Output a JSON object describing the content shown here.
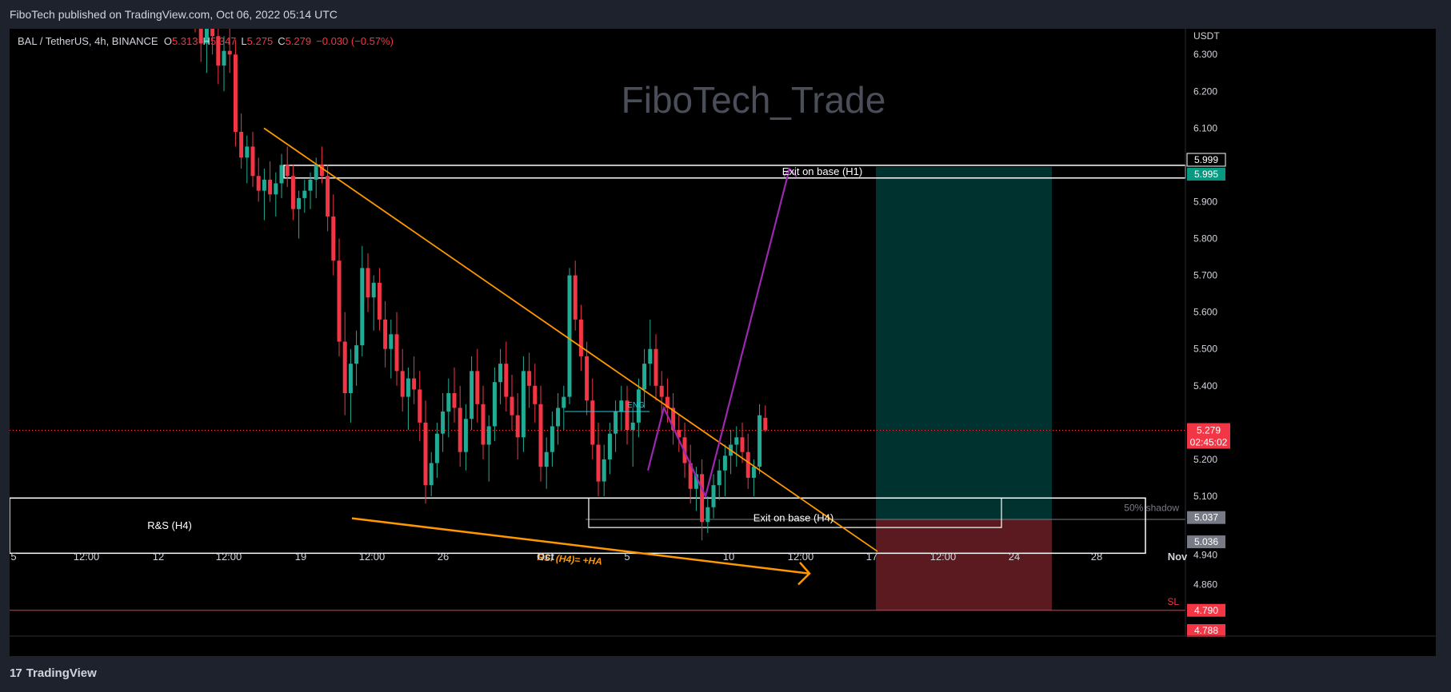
{
  "header": {
    "published": "FiboTech published on TradingView.com, Oct 06, 2022 05:14 UTC"
  },
  "legend": {
    "symbol": "BAL / TetherUS, 4h, BINANCE",
    "o_label": "O",
    "o": "5.313",
    "h_label": "H",
    "h": "5.347",
    "l_label": "L",
    "l": "5.275",
    "c_label": "C",
    "c": "5.279",
    "change": "−0.030 (−0.57%)"
  },
  "footer": {
    "brand": "TradingView",
    "logo_mark": "17"
  },
  "colors": {
    "up": "#22ab94",
    "down": "#f23645",
    "trendline": "#ff9800",
    "projection": "#9c27b0",
    "target_zone": "#003330",
    "stop_zone": "#5a1a1f"
  },
  "chart_data": {
    "type": "candlestick",
    "watermark": "FiboTech_Trade",
    "price_axis": {
      "currency": "USDT",
      "ticks": [
        "6.300",
        "6.200",
        "6.100",
        "5.900",
        "5.800",
        "5.700",
        "5.600",
        "5.500",
        "5.400",
        "5.200",
        "5.100",
        "4.940",
        "4.860"
      ],
      "ylim": [
        4.72,
        6.37
      ]
    },
    "time_axis": {
      "ticks": [
        "5",
        "12:00",
        "12",
        "12:00",
        "19",
        "12:00",
        "26",
        "Oct",
        "5",
        "10",
        "12:00",
        "17",
        "12:00",
        "24",
        "28",
        "Nov"
      ]
    },
    "badges": [
      {
        "text": "5.999",
        "style": "outline"
      },
      {
        "text": "5.995",
        "style": "teal"
      },
      {
        "text": "5.279",
        "sub": "02:45:02",
        "style": "red"
      },
      {
        "text": "5.037",
        "style": "grey"
      },
      {
        "text": "5.036",
        "style": "grey"
      },
      {
        "text": "4.790",
        "style": "red"
      },
      {
        "text": "4.788",
        "style": "red"
      }
    ],
    "annotations": {
      "exit_h1": "Exit on base (H1)",
      "exit_h4": "Exit on base (H4)",
      "rs_h4": "R&S (H4)",
      "rsi": "RSI (H4)= +HA",
      "eng": "ENG",
      "shadow": "50% shadow",
      "sl": "SL"
    },
    "levels": {
      "exit_h1_top": 5.999,
      "exit_h1_bottom": 5.995,
      "last_price": 5.279,
      "sl": 4.79,
      "rs_top": 5.095,
      "rs_bottom": 4.945,
      "target": 5.995,
      "entry": 5.037
    },
    "candles": [
      [
        6.48,
        6.52,
        6.36,
        6.41
      ],
      [
        6.41,
        6.46,
        6.28,
        6.33
      ],
      [
        6.33,
        6.4,
        6.25,
        6.37
      ],
      [
        6.37,
        6.43,
        6.3,
        6.35
      ],
      [
        6.35,
        6.39,
        6.22,
        6.27
      ],
      [
        6.27,
        6.35,
        6.2,
        6.31
      ],
      [
        6.31,
        6.38,
        6.25,
        6.3
      ],
      [
        6.3,
        6.34,
        6.05,
        6.09
      ],
      [
        6.09,
        6.14,
        5.99,
        6.02
      ],
      [
        6.02,
        6.08,
        5.95,
        6.05
      ],
      [
        6.05,
        6.09,
        5.94,
        5.97
      ],
      [
        5.97,
        6.02,
        5.9,
        5.93
      ],
      [
        5.93,
        5.99,
        5.85,
        5.96
      ],
      [
        5.96,
        6.01,
        5.9,
        5.92
      ],
      [
        5.92,
        5.98,
        5.86,
        5.95
      ],
      [
        5.95,
        6.03,
        5.91,
        6.0
      ],
      [
        6.0,
        6.05,
        5.94,
        5.97
      ],
      [
        5.97,
        6.0,
        5.85,
        5.88
      ],
      [
        5.88,
        5.93,
        5.8,
        5.91
      ],
      [
        5.91,
        5.96,
        5.87,
        5.93
      ],
      [
        5.93,
        5.98,
        5.88,
        5.96
      ],
      [
        5.96,
        6.02,
        5.91,
        6.0
      ],
      [
        6.0,
        6.05,
        5.95,
        5.97
      ],
      [
        5.97,
        6.0,
        5.82,
        5.86
      ],
      [
        5.86,
        5.92,
        5.7,
        5.74
      ],
      [
        5.74,
        5.8,
        5.48,
        5.52
      ],
      [
        5.52,
        5.6,
        5.32,
        5.38
      ],
      [
        5.38,
        5.5,
        5.3,
        5.46
      ],
      [
        5.46,
        5.55,
        5.4,
        5.51
      ],
      [
        5.51,
        5.78,
        5.48,
        5.72
      ],
      [
        5.72,
        5.76,
        5.6,
        5.64
      ],
      [
        5.64,
        5.7,
        5.55,
        5.68
      ],
      [
        5.68,
        5.72,
        5.55,
        5.58
      ],
      [
        5.58,
        5.63,
        5.45,
        5.5
      ],
      [
        5.5,
        5.58,
        5.42,
        5.54
      ],
      [
        5.54,
        5.6,
        5.4,
        5.44
      ],
      [
        5.44,
        5.5,
        5.33,
        5.37
      ],
      [
        5.37,
        5.45,
        5.28,
        5.42
      ],
      [
        5.42,
        5.48,
        5.35,
        5.39
      ],
      [
        5.39,
        5.44,
        5.25,
        5.3
      ],
      [
        5.3,
        5.36,
        5.08,
        5.13
      ],
      [
        5.13,
        5.22,
        5.1,
        5.19
      ],
      [
        5.19,
        5.3,
        5.15,
        5.27
      ],
      [
        5.27,
        5.38,
        5.22,
        5.33
      ],
      [
        5.33,
        5.42,
        5.26,
        5.38
      ],
      [
        5.38,
        5.45,
        5.3,
        5.34
      ],
      [
        5.34,
        5.4,
        5.18,
        5.22
      ],
      [
        5.22,
        5.35,
        5.17,
        5.31
      ],
      [
        5.31,
        5.48,
        5.28,
        5.44
      ],
      [
        5.44,
        5.5,
        5.3,
        5.35
      ],
      [
        5.35,
        5.4,
        5.2,
        5.24
      ],
      [
        5.24,
        5.32,
        5.14,
        5.29
      ],
      [
        5.29,
        5.45,
        5.25,
        5.41
      ],
      [
        5.41,
        5.5,
        5.35,
        5.46
      ],
      [
        5.46,
        5.52,
        5.33,
        5.37
      ],
      [
        5.37,
        5.43,
        5.28,
        5.32
      ],
      [
        5.32,
        5.38,
        5.2,
        5.26
      ],
      [
        5.26,
        5.48,
        5.22,
        5.44
      ],
      [
        5.44,
        5.49,
        5.34,
        5.4
      ],
      [
        5.4,
        5.46,
        5.3,
        5.35
      ],
      [
        5.35,
        5.4,
        5.14,
        5.18
      ],
      [
        5.18,
        5.26,
        5.12,
        5.22
      ],
      [
        5.22,
        5.33,
        5.18,
        5.29
      ],
      [
        5.29,
        5.38,
        5.24,
        5.34
      ],
      [
        5.34,
        5.4,
        5.28,
        5.37
      ],
      [
        5.37,
        5.72,
        5.35,
        5.7
      ],
      [
        5.7,
        5.74,
        5.55,
        5.58
      ],
      [
        5.58,
        5.62,
        5.44,
        5.48
      ],
      [
        5.48,
        5.52,
        5.32,
        5.36
      ],
      [
        5.36,
        5.42,
        5.2,
        5.24
      ],
      [
        5.24,
        5.3,
        5.1,
        5.14
      ],
      [
        5.14,
        5.24,
        5.1,
        5.2
      ],
      [
        5.2,
        5.3,
        5.16,
        5.27
      ],
      [
        5.27,
        5.36,
        5.22,
        5.33
      ],
      [
        5.33,
        5.4,
        5.28,
        5.36
      ],
      [
        5.36,
        5.4,
        5.24,
        5.28
      ],
      [
        5.28,
        5.34,
        5.18,
        5.3
      ],
      [
        5.3,
        5.42,
        5.26,
        5.39
      ],
      [
        5.39,
        5.5,
        5.34,
        5.46
      ],
      [
        5.46,
        5.58,
        5.4,
        5.5
      ],
      [
        5.5,
        5.54,
        5.36,
        5.4
      ],
      [
        5.4,
        5.44,
        5.32,
        5.37
      ],
      [
        5.37,
        5.42,
        5.3,
        5.34
      ],
      [
        5.34,
        5.38,
        5.24,
        5.28
      ],
      [
        5.28,
        5.32,
        5.22,
        5.26
      ],
      [
        5.26,
        5.3,
        5.15,
        5.19
      ],
      [
        5.19,
        5.24,
        5.08,
        5.12
      ],
      [
        5.12,
        5.18,
        5.06,
        5.16
      ],
      [
        5.16,
        5.2,
        4.98,
        5.03
      ],
      [
        5.03,
        5.1,
        5.0,
        5.07
      ],
      [
        5.07,
        5.16,
        5.04,
        5.13
      ],
      [
        5.13,
        5.2,
        5.09,
        5.17
      ],
      [
        5.17,
        5.24,
        5.1,
        5.21
      ],
      [
        5.21,
        5.28,
        5.16,
        5.24
      ],
      [
        5.24,
        5.29,
        5.18,
        5.26
      ],
      [
        5.26,
        5.3,
        5.19,
        5.22
      ],
      [
        5.22,
        5.27,
        5.12,
        5.15
      ],
      [
        5.15,
        5.2,
        5.1,
        5.18
      ],
      [
        5.18,
        5.35,
        5.16,
        5.32
      ],
      [
        5.313,
        5.347,
        5.275,
        5.279
      ]
    ],
    "trendline_upper": {
      "from": {
        "t": "Sep 17",
        "v": 6.1
      },
      "to": {
        "t": "Oct 17",
        "v": 4.95
      }
    },
    "trendline_lower": {
      "from": {
        "t": "Sep 21",
        "v": 5.04
      },
      "to": {
        "t": "Oct 9",
        "v": 4.89
      }
    },
    "projection": [
      5.17,
      5.34,
      5.1,
      5.99
    ]
  }
}
